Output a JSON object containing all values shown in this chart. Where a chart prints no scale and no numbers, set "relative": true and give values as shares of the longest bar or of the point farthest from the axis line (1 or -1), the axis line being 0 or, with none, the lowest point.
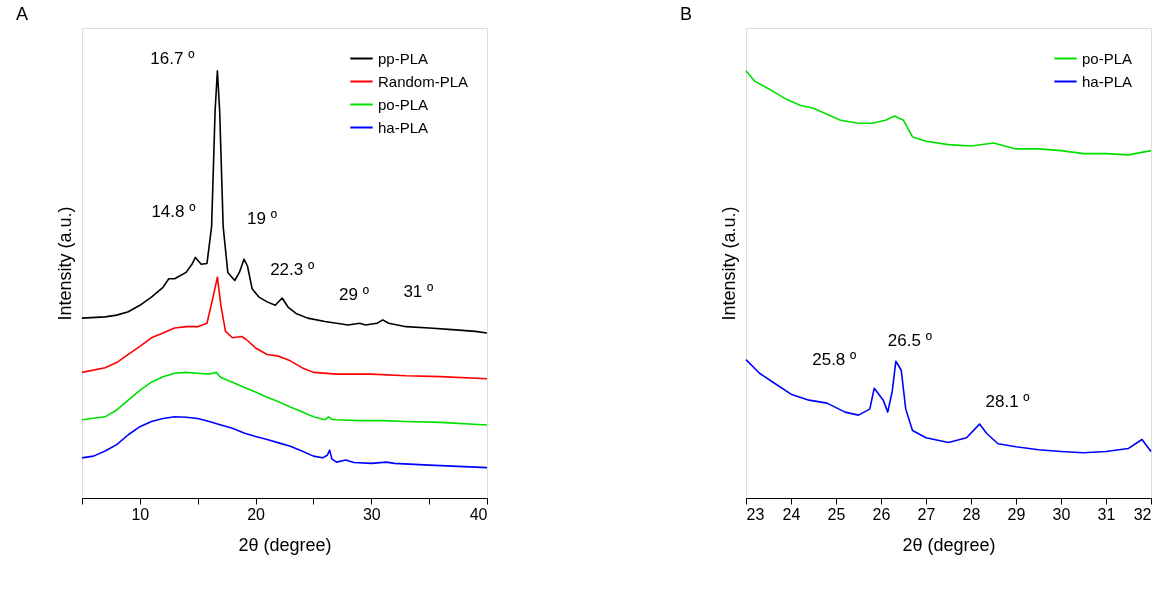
{
  "chart_data": [
    {
      "type": "line",
      "title": "A",
      "xlabel": "2θ (degree)",
      "ylabel": "Intensity (a.u.)",
      "relative": true,
      "legend": "top right",
      "grid": false,
      "xlim": [
        5,
        40
      ],
      "xticks": [
        {
          "value": 5,
          "label": null
        },
        10,
        {
          "value": 15,
          "label": null
        },
        20,
        {
          "value": 25,
          "label": null
        },
        30,
        {
          "value": 35,
          "label": null
        },
        40
      ],
      "series": [
        {
          "name": "pp-PLA",
          "color": "#000000",
          "x": [
            5,
            7,
            8,
            9,
            10,
            11,
            12,
            12.5,
            13,
            14,
            14.5,
            14.8,
            15.3,
            15.8,
            16.2,
            16.5,
            16.7,
            16.9,
            17.2,
            17.6,
            18.2,
            18.6,
            19,
            19.3,
            19.7,
            20.3,
            21,
            21.7,
            22.3,
            22.8,
            23.5,
            24.5,
            26,
            27,
            28,
            29,
            29.5,
            30.5,
            31,
            31.5,
            33,
            35,
            37,
            39,
            40
          ],
          "values": [
            0.421,
            0.424,
            0.428,
            0.436,
            0.451,
            0.47,
            0.493,
            0.513,
            0.513,
            0.528,
            0.547,
            0.563,
            0.547,
            0.549,
            0.635,
            0.904,
            1.0,
            0.904,
            0.635,
            0.528,
            0.509,
            0.528,
            0.559,
            0.543,
            0.49,
            0.47,
            0.459,
            0.451,
            0.468,
            0.447,
            0.432,
            0.421,
            0.413,
            0.409,
            0.405,
            0.409,
            0.405,
            0.409,
            0.417,
            0.409,
            0.401,
            0.398,
            0.394,
            0.39,
            0.386
          ]
        },
        {
          "name": "Random-PLA",
          "color": "#ff0000",
          "x": [
            5,
            7,
            8,
            9,
            10,
            11,
            12,
            13,
            14,
            15,
            15.8,
            16.3,
            16.7,
            17.0,
            17.4,
            18,
            18.8,
            19.2,
            20,
            21,
            22,
            23,
            24,
            25,
            27,
            30,
            33,
            36,
            40
          ],
          "values": [
            0.294,
            0.305,
            0.317,
            0.336,
            0.355,
            0.375,
            0.386,
            0.398,
            0.401,
            0.401,
            0.409,
            0.467,
            0.517,
            0.451,
            0.39,
            0.375,
            0.378,
            0.371,
            0.351,
            0.336,
            0.332,
            0.321,
            0.305,
            0.294,
            0.29,
            0.29,
            0.286,
            0.284,
            0.279
          ]
        },
        {
          "name": "po-PLA",
          "color": "#00e000",
          "x": [
            5,
            7,
            8,
            9,
            10,
            11,
            12,
            13,
            14,
            15,
            16,
            16.6,
            17,
            18,
            19,
            20,
            21,
            22,
            23,
            24,
            25,
            26,
            26.3,
            26.6,
            27,
            29,
            31,
            33,
            36,
            40
          ],
          "values": [
            0.183,
            0.19,
            0.206,
            0.229,
            0.252,
            0.271,
            0.284,
            0.292,
            0.294,
            0.292,
            0.29,
            0.294,
            0.282,
            0.271,
            0.259,
            0.248,
            0.236,
            0.225,
            0.213,
            0.202,
            0.19,
            0.183,
            0.19,
            0.184,
            0.183,
            0.181,
            0.181,
            0.179,
            0.177,
            0.171
          ]
        },
        {
          "name": "ha-PLA",
          "color": "#0000ff",
          "x": [
            5,
            6,
            7,
            8,
            9,
            10,
            11,
            12,
            13,
            14,
            15,
            16,
            17,
            18,
            19,
            20,
            21,
            22,
            23,
            24,
            25,
            25.8,
            26.2,
            26.4,
            26.6,
            27,
            27.8,
            28.5,
            30,
            31.3,
            32,
            35,
            40
          ],
          "values": [
            0.094,
            0.098,
            0.11,
            0.125,
            0.148,
            0.167,
            0.179,
            0.186,
            0.19,
            0.189,
            0.186,
            0.179,
            0.171,
            0.163,
            0.152,
            0.144,
            0.137,
            0.129,
            0.121,
            0.11,
            0.098,
            0.094,
            0.1,
            0.112,
            0.091,
            0.084,
            0.089,
            0.083,
            0.081,
            0.084,
            0.081,
            0.077,
            0.071
          ]
        }
      ],
      "annotations": [
        {
          "text": "16.7 º",
          "x": 16.7,
          "y": 1.0
        },
        {
          "text": "14.8 º",
          "x": 14.8,
          "y": 0.563
        },
        {
          "text": "19 º",
          "x": 19,
          "y": 0.559
        },
        {
          "text": "22.3 º",
          "x": 22.3,
          "y": 0.468
        },
        {
          "text": "29 º",
          "x": 29.2,
          "y": 0.409
        },
        {
          "text": "31 º",
          "x": 31.3,
          "y": 0.417
        }
      ]
    },
    {
      "type": "line",
      "title": "B",
      "xlabel": "2θ (degree)",
      "ylabel": "Intensity (a.u.)",
      "relative": true,
      "legend": "top right",
      "grid": false,
      "xlim": [
        23,
        32
      ],
      "xticks": [
        23,
        24,
        25,
        26,
        27,
        28,
        29,
        30,
        31,
        32
      ],
      "series": [
        {
          "name": "po-PLA",
          "color": "#00e000",
          "x": [
            23,
            23.2,
            23.5,
            23.9,
            24.2,
            24.5,
            24.8,
            25.1,
            25.5,
            25.8,
            26.1,
            26.3,
            26.5,
            26.7,
            27,
            27.5,
            28,
            28.5,
            29,
            29.5,
            30,
            30.5,
            31,
            31.5,
            32
          ],
          "values": [
            1.0,
            0.975,
            0.958,
            0.933,
            0.919,
            0.912,
            0.898,
            0.884,
            0.877,
            0.877,
            0.884,
            0.894,
            0.884,
            0.845,
            0.835,
            0.827,
            0.824,
            0.831,
            0.817,
            0.817,
            0.813,
            0.806,
            0.806,
            0.803,
            0.813
          ]
        },
        {
          "name": "ha-PLA",
          "color": "#0000ff",
          "x": [
            23,
            23.3,
            23.6,
            24,
            24.4,
            24.8,
            25.2,
            25.5,
            25.75,
            25.85,
            26.05,
            26.15,
            26.25,
            26.33,
            26.45,
            26.55,
            26.7,
            27,
            27.5,
            27.9,
            28.19,
            28.35,
            28.6,
            29,
            29.5,
            30,
            30.5,
            31,
            31.5,
            31.8,
            32
          ],
          "values": [
            0.324,
            0.292,
            0.271,
            0.243,
            0.229,
            0.222,
            0.201,
            0.194,
            0.208,
            0.257,
            0.229,
            0.201,
            0.25,
            0.32,
            0.299,
            0.208,
            0.158,
            0.141,
            0.13,
            0.141,
            0.173,
            0.151,
            0.127,
            0.12,
            0.113,
            0.109,
            0.106,
            0.109,
            0.116,
            0.137,
            0.109
          ]
        }
      ],
      "annotations": [
        {
          "text": "25.8 º",
          "x": 25.85,
          "y": 0.257
        },
        {
          "text": "26.5 º",
          "x": 26.33,
          "y": 0.32
        },
        {
          "text": "28.1 º",
          "x": 28.19,
          "y": 0.173
        }
      ]
    }
  ]
}
